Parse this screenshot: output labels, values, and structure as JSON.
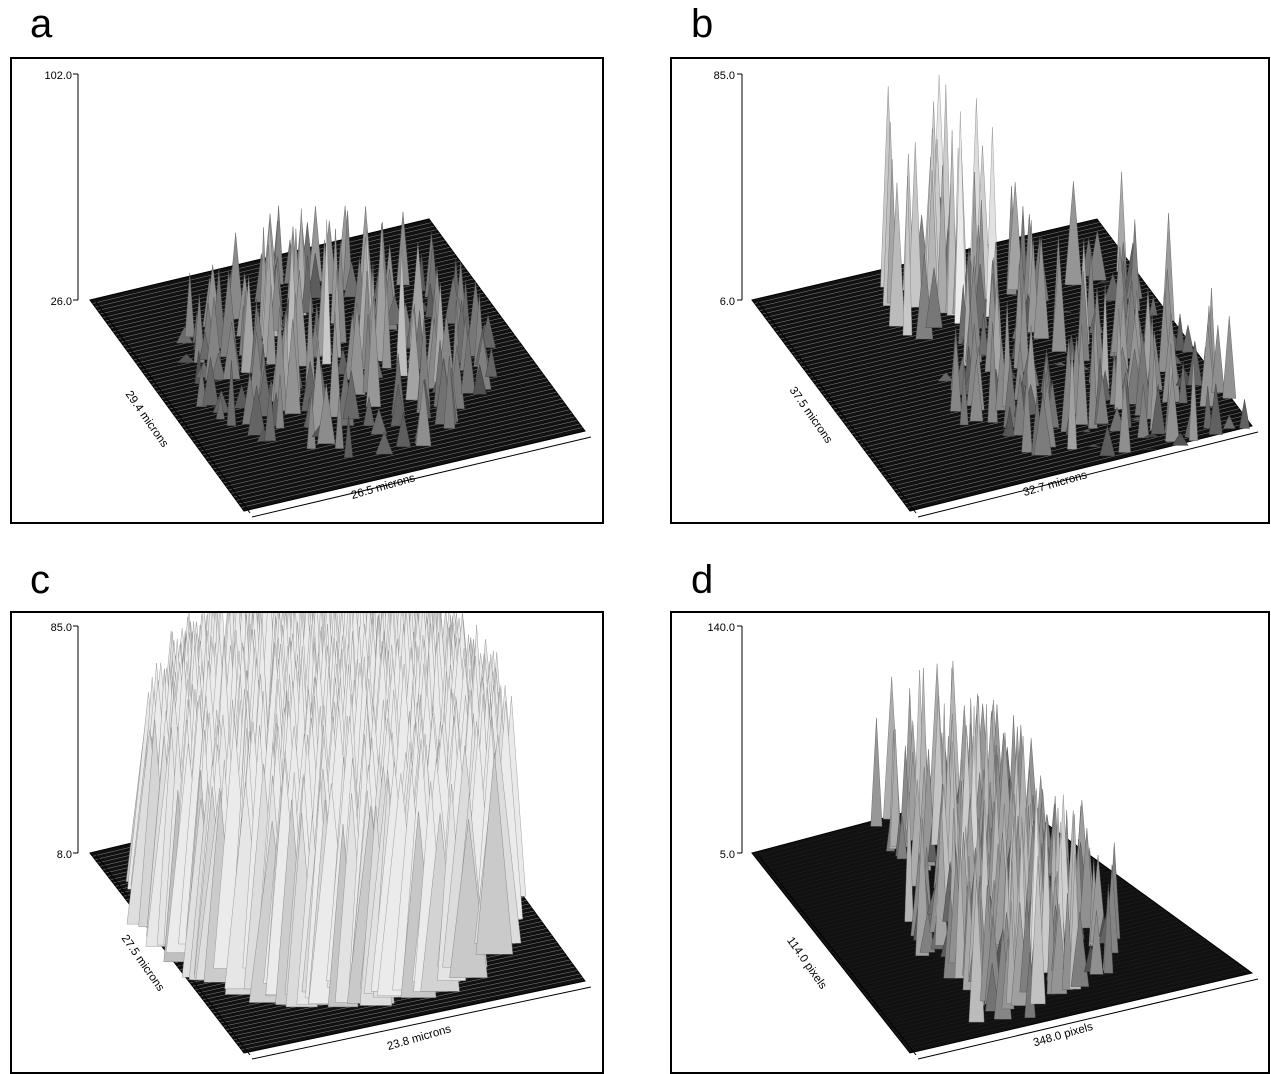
{
  "panels": [
    {
      "label": "a",
      "chart_data": {
        "type": "surface",
        "z_ticks": [
          "102.0",
          "26.0"
        ],
        "zlim": [
          26.0,
          102.0
        ],
        "xlabel": "26.5 microns",
        "ylabel": "29.4 microns",
        "shading": "grayscale"
      }
    },
    {
      "label": "b",
      "chart_data": {
        "type": "surface",
        "z_ticks": [
          "85.0",
          "6.0"
        ],
        "zlim": [
          6.0,
          85.0
        ],
        "xlabel": "32.7 microns",
        "ylabel": "37.5 microns",
        "shading": "grayscale"
      }
    },
    {
      "label": "c",
      "chart_data": {
        "type": "surface",
        "z_ticks": [
          "85.0",
          "8.0"
        ],
        "zlim": [
          8.0,
          85.0
        ],
        "xlabel": "23.8 microns",
        "ylabel": "27.5 microns",
        "shading": "grayscale"
      }
    },
    {
      "label": "d",
      "chart_data": {
        "type": "surface",
        "z_ticks": [
          "140.0",
          "5.0"
        ],
        "zlim": [
          5.0,
          140.0
        ],
        "xlabel": "348.0 pixels",
        "ylabel": "114.0 pixels",
        "shading": "grayscale"
      }
    }
  ]
}
